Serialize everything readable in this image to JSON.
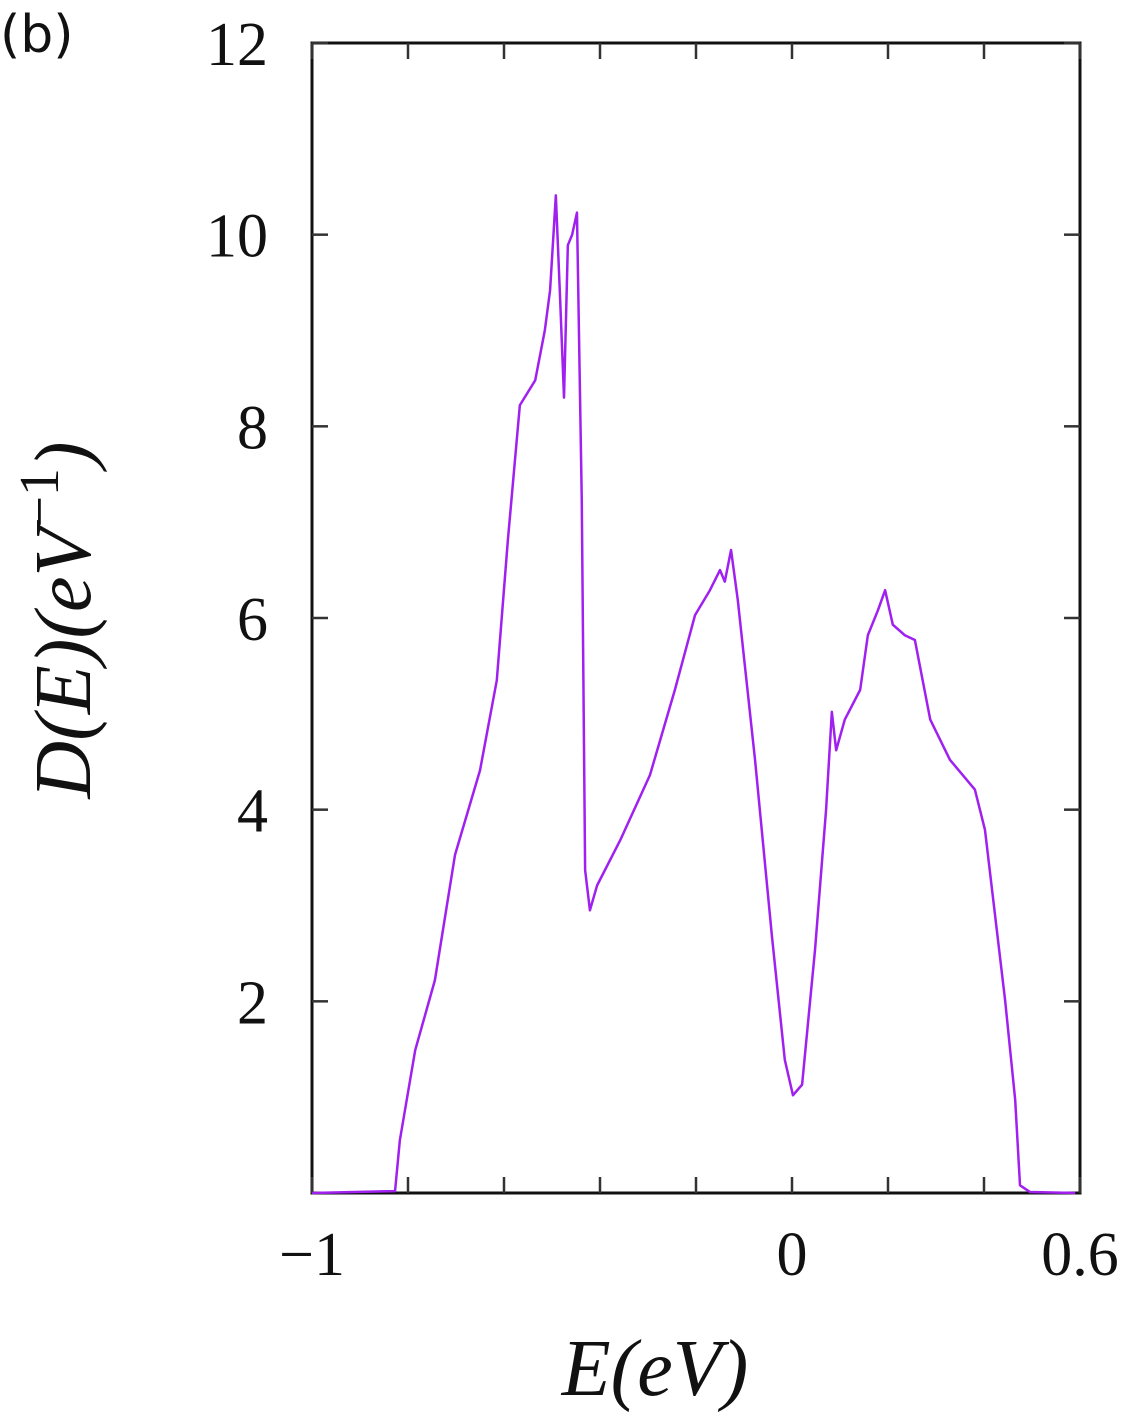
{
  "chart_data": {
    "type": "line",
    "panel_label": "(b)",
    "xlabel": "E(eV)",
    "ylabel": [
      "D(E)(eV",
      "−1",
      ")"
    ],
    "xlim": [
      -1,
      0.6
    ],
    "ylim": [
      0,
      12
    ],
    "xticks": [
      {
        "value": -1,
        "label": "−1"
      },
      0,
      0.6
    ],
    "xminor_ticks": [
      -0.8,
      -0.6,
      -0.4,
      -0.2,
      0.2,
      0.4
    ],
    "yticks": [
      2,
      4,
      6,
      8,
      10,
      12
    ],
    "color": "#a020f0",
    "x": [
      -1,
      -0.827,
      -0.817,
      -0.785,
      -0.744,
      -0.702,
      -0.65,
      -0.615,
      -0.592,
      -0.567,
      -0.535,
      -0.515,
      -0.504,
      -0.492,
      -0.483,
      -0.475,
      -0.467,
      -0.458,
      -0.448,
      -0.438,
      -0.431,
      -0.421,
      -0.406,
      -0.358,
      -0.296,
      -0.244,
      -0.202,
      -0.171,
      -0.15,
      -0.14,
      -0.127,
      -0.113,
      -0.077,
      -0.042,
      -0.015,
      0.002,
      0.021,
      0.048,
      0.071,
      0.083,
      0.092,
      0.11,
      0.142,
      0.158,
      0.179,
      0.194,
      0.21,
      0.235,
      0.256,
      0.288,
      0.329,
      0.381,
      0.402,
      0.444,
      0.465,
      0.475,
      0.496,
      0.59
    ],
    "values": [
      0,
      0.02,
      0.55,
      1.49,
      2.22,
      3.53,
      4.41,
      5.35,
      6.81,
      8.22,
      8.48,
      9.0,
      9.42,
      10.41,
      9.32,
      8.3,
      9.89,
      10.0,
      10.23,
      7.23,
      3.37,
      2.95,
      3.21,
      3.68,
      4.36,
      5.25,
      6.03,
      6.29,
      6.5,
      6.38,
      6.71,
      6.19,
      4.52,
      2.69,
      1.39,
      1.02,
      1.13,
      2.54,
      4.0,
      5.02,
      4.62,
      4.94,
      5.25,
      5.82,
      6.08,
      6.29,
      5.93,
      5.82,
      5.77,
      4.94,
      4.52,
      4.21,
      3.79,
      2.01,
      0.97,
      0.08,
      0.01,
      0
    ]
  }
}
